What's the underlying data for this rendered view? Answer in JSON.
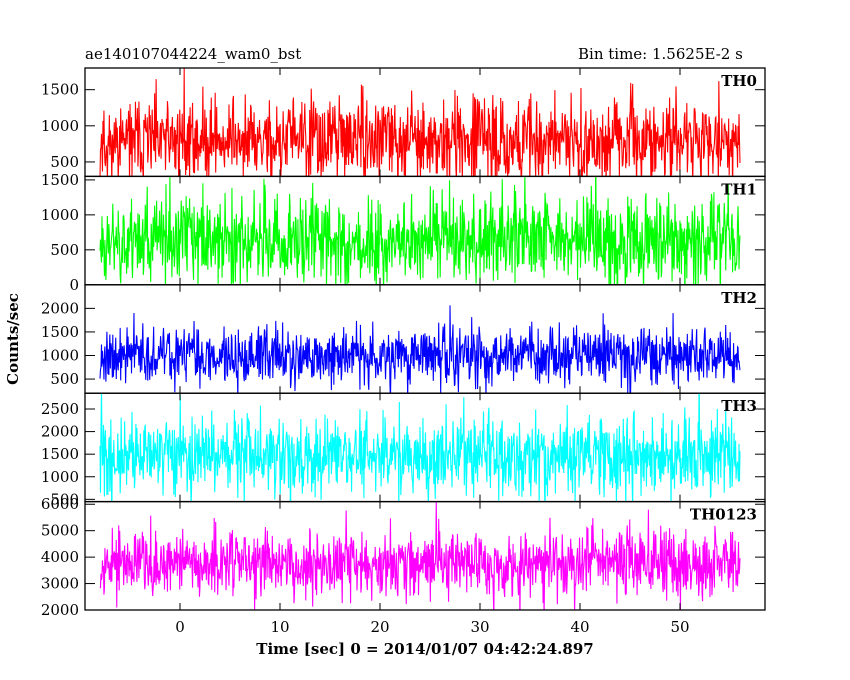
{
  "header": {
    "title": "ae140107044224_wam0_bst",
    "bin_time": "Bin time: 1.5625E-2 s"
  },
  "chart_data": {
    "type": "line",
    "x": {
      "label": "Time [sec] 0 = 2014/01/07 04:42:24.897",
      "range": [
        -8,
        56
      ],
      "plot_range": [
        -9.5,
        58.5
      ],
      "ticks": [
        0,
        10,
        20,
        30,
        40,
        50
      ]
    },
    "ylabel": "Counts/sec",
    "grid": false,
    "panels": [
      {
        "name": "TH0",
        "color": "#ff0000",
        "ylim": [
          300,
          1800
        ],
        "ticks": [
          500,
          1000,
          1500
        ],
        "mean": 800,
        "spread": 330,
        "seed": 11
      },
      {
        "name": "TH1",
        "color": "#00ff00",
        "ylim": [
          0,
          1550
        ],
        "ticks": [
          0,
          500,
          1000,
          1500
        ],
        "mean": 650,
        "spread": 360,
        "seed": 23
      },
      {
        "name": "TH2",
        "color": "#0000ff",
        "ylim": [
          200,
          2500
        ],
        "ticks": [
          500,
          1000,
          1500,
          2000
        ],
        "mean": 1000,
        "spread": 360,
        "seed": 37
      },
      {
        "name": "TH3",
        "color": "#00ffff",
        "ylim": [
          450,
          2850
        ],
        "ticks": [
          500,
          1000,
          1500,
          2000,
          2500
        ],
        "mean": 1450,
        "spread": 480,
        "seed": 41
      },
      {
        "name": "TH0123",
        "color": "#ff00ff",
        "ylim": [
          2000,
          6100
        ],
        "ticks": [
          2000,
          3000,
          4000,
          5000,
          6000
        ],
        "mean": 3800,
        "spread": 720,
        "seed": 53
      }
    ]
  }
}
